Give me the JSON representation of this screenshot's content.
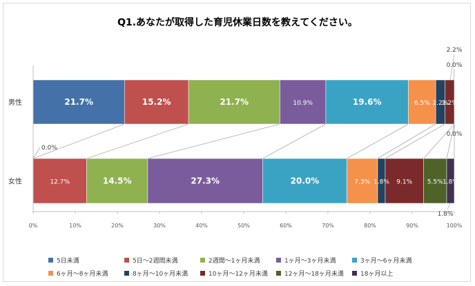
{
  "chart_data": {
    "type": "bar",
    "orientation": "horizontal-stacked-100",
    "title": "Q1.あなたが取得した育児休業日数を教えてください。",
    "categories": [
      "男性",
      "女性"
    ],
    "xlim": [
      0,
      100
    ],
    "x_tick_labels": [
      "0%",
      "10%",
      "20%",
      "30%",
      "40%",
      "50%",
      "60%",
      "70%",
      "80%",
      "90%",
      "100%"
    ],
    "grid": false,
    "legend_position": "bottom",
    "series": [
      {
        "name": "5日未満",
        "color": "#4472a8",
        "values": [
          21.7,
          0.0
        ],
        "labels": [
          "21.7%",
          "0.0%"
        ]
      },
      {
        "name": "5日～2週間未満",
        "color": "#c0504d",
        "values": [
          15.2,
          12.7
        ],
        "labels": [
          "15.2%",
          "12.7%"
        ]
      },
      {
        "name": "2週間～1ヶ月未満",
        "color": "#8fb150",
        "values": [
          21.7,
          14.5
        ],
        "labels": [
          "21.7%",
          "14.5%"
        ]
      },
      {
        "name": "1ヶ月～3ヶ月未満",
        "color": "#7a5c9c",
        "values": [
          10.9,
          27.3
        ],
        "labels": [
          "10.9%",
          "27.3%"
        ]
      },
      {
        "name": "3ヶ月～6ヶ月未満",
        "color": "#3aa3c4",
        "values": [
          19.6,
          20.0
        ],
        "labels": [
          "19.6%",
          "20.0%"
        ]
      },
      {
        "name": "6ヶ月～8ヶ月未満",
        "color": "#f5914a",
        "values": [
          6.5,
          7.3
        ],
        "labels": [
          "6.5%",
          "7.3%"
        ]
      },
      {
        "name": "8ヶ月～10ヶ月未満",
        "color": "#24415f",
        "values": [
          2.2,
          1.8
        ],
        "labels": [
          "2.2%",
          "1.8%"
        ]
      },
      {
        "name": "10ヶ月～12ヶ月未満",
        "color": "#7a2a2a",
        "values": [
          2.2,
          9.1
        ],
        "labels": [
          "2.2%",
          "9.1%"
        ]
      },
      {
        "name": "12ヶ月～18ヶ月未満",
        "color": "#4f6228",
        "values": [
          0.0,
          5.5
        ],
        "labels": [
          "0.0%",
          "5.5%"
        ]
      },
      {
        "name": "18ヶ月以上",
        "color": "#403152",
        "values": [
          0.0,
          1.8
        ],
        "labels": [
          "0.0%",
          "1.8%"
        ]
      }
    ]
  }
}
